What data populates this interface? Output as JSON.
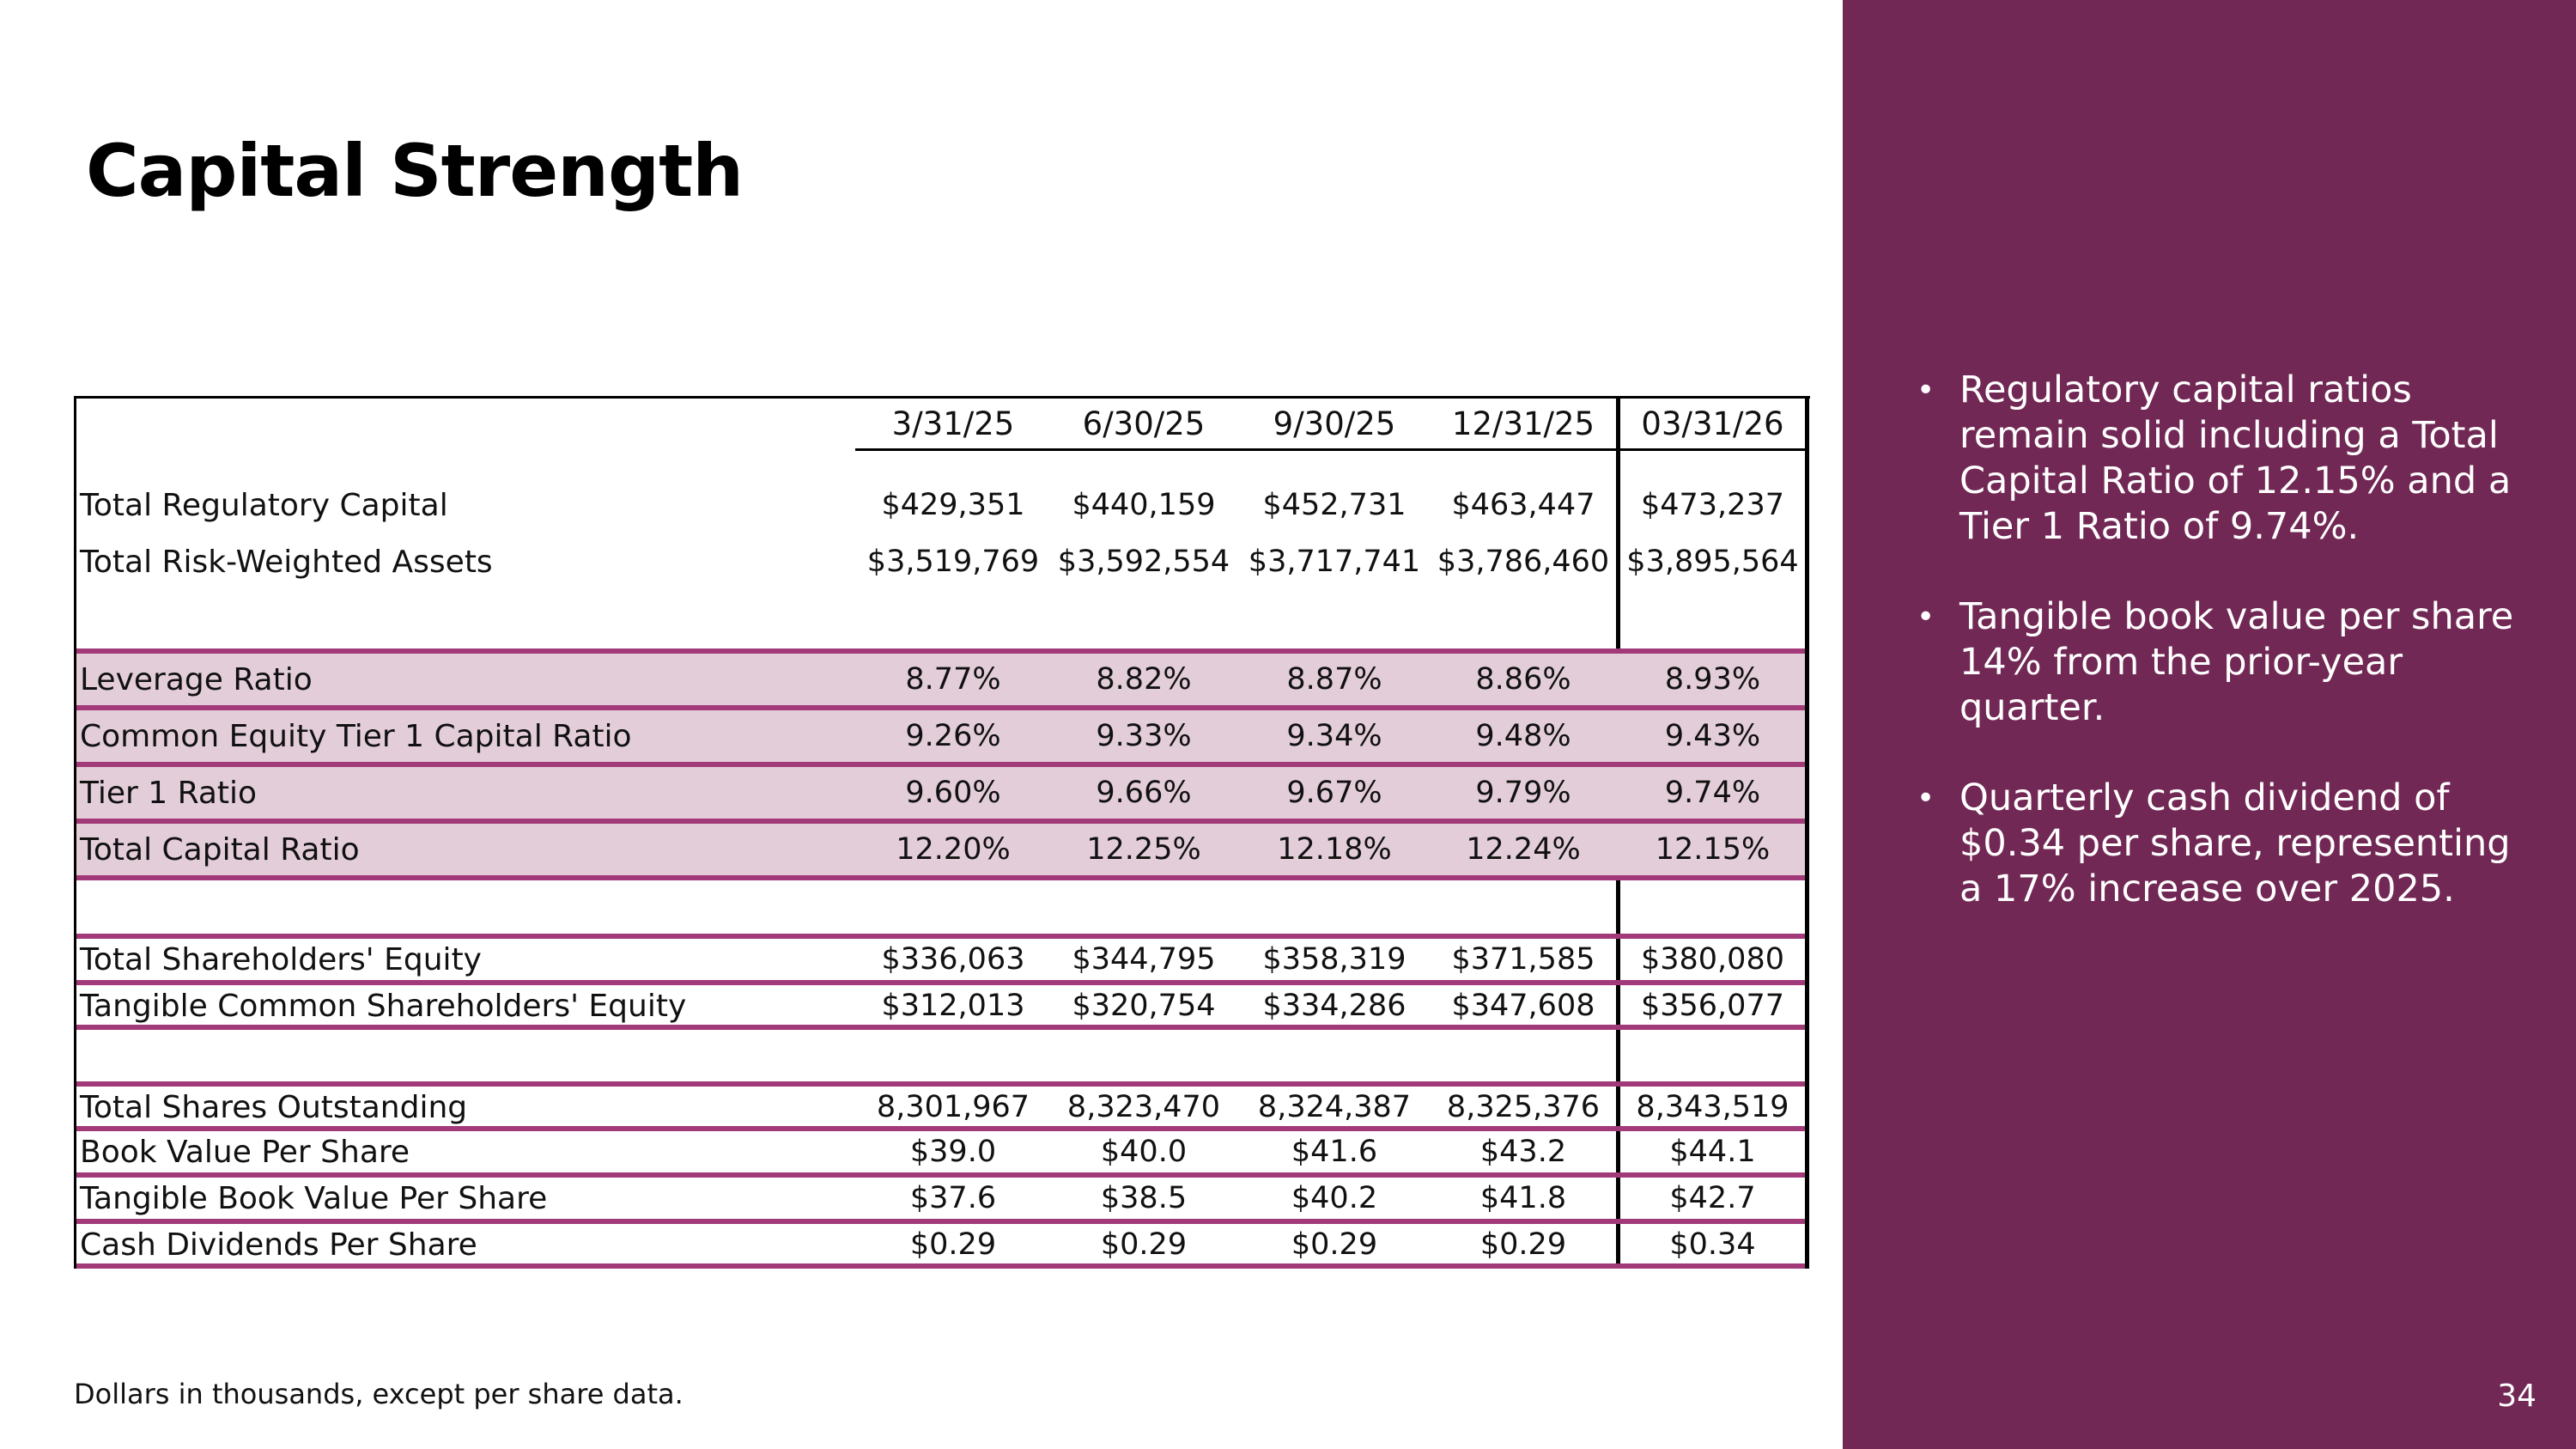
{
  "title": "Capital Strength",
  "table": {
    "columns": [
      "3/31/25",
      "6/30/25",
      "9/30/25",
      "12/31/25",
      "03/31/26"
    ],
    "rows": [
      {
        "label": "Total Regulatory Capital",
        "values": [
          "$429,351",
          "$440,159",
          "$452,731",
          "$463,447",
          "$473,237"
        ]
      },
      {
        "label": "Total Risk-Weighted Assets",
        "values": [
          "$3,519,769",
          "$3,592,554",
          "$3,717,741",
          "$3,786,460",
          "$3,895,564"
        ]
      },
      {
        "label": "Leverage Ratio",
        "values": [
          "8.77%",
          "8.82%",
          "8.87%",
          "8.86%",
          "8.93%"
        ]
      },
      {
        "label": "Common Equity Tier 1 Capital Ratio",
        "values": [
          "9.26%",
          "9.33%",
          "9.34%",
          "9.48%",
          "9.43%"
        ]
      },
      {
        "label": "Tier 1 Ratio",
        "values": [
          "9.60%",
          "9.66%",
          "9.67%",
          "9.79%",
          "9.74%"
        ]
      },
      {
        "label": "Total Capital Ratio",
        "values": [
          "12.20%",
          "12.25%",
          "12.18%",
          "12.24%",
          "12.15%"
        ]
      },
      {
        "label": "Total Shareholders' Equity",
        "values": [
          "$336,063",
          "$344,795",
          "$358,319",
          "$371,585",
          "$380,080"
        ]
      },
      {
        "label": "Tangible Common Shareholders' Equity",
        "values": [
          "$312,013",
          "$320,754",
          "$334,286",
          "$347,608",
          "$356,077"
        ]
      },
      {
        "label": "Total Shares Outstanding",
        "values": [
          "8,301,967",
          "8,323,470",
          "8,324,387",
          "8,325,376",
          "8,343,519"
        ]
      },
      {
        "label": "Book Value Per Share",
        "values": [
          "$39.0",
          "$40.0",
          "$41.6",
          "$43.2",
          "$44.1"
        ]
      },
      {
        "label": "Tangible Book Value Per Share",
        "values": [
          "$37.6",
          "$38.5",
          "$40.2",
          "$41.8",
          "$42.7"
        ]
      },
      {
        "label": "Cash Dividends Per Share",
        "values": [
          "$0.29",
          "$0.29",
          "$0.29",
          "$0.29",
          "$0.34"
        ]
      }
    ]
  },
  "footnote": "Dollars in thousands, except per share data.",
  "bullets": [
    "Regulatory capital ratios remain solid including a Total Capital Ratio of 12.15% and a Tier 1 Ratio of 9.74%.",
    "Tangible book value per share 14% from the prior-year quarter.",
    "Quarterly cash dividend of $0.34 per share, representing a 17% increase over 2025."
  ],
  "bullet_symbol": "•",
  "page_number": "34",
  "colors": {
    "panel": "#722855",
    "accent_line": "#a23a7a",
    "row_shade": "#e3cdd9"
  }
}
